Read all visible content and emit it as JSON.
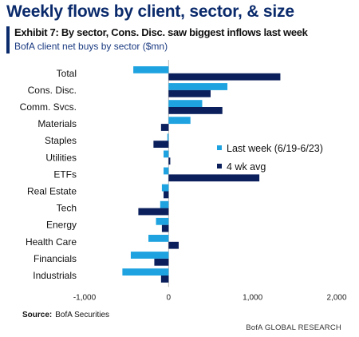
{
  "headline": "Weekly flows by client, sector, & size",
  "exhibit": {
    "title": "Exhibit 7: By sector, Cons. Disc. saw biggest inflows last week",
    "subtitle": "BofA client net buys by sector ($mn)"
  },
  "source": {
    "label": "Source:",
    "text": "BofA Securities"
  },
  "footer": "BofA GLOBAL RESEARCH",
  "colors": {
    "last_week": "#1fa3e0",
    "wk4_avg": "#0a1f5c",
    "zero_line": "#b9b9b9"
  },
  "chart_data": {
    "type": "bar",
    "orientation": "horizontal",
    "categories": [
      "Total",
      "Cons. Disc.",
      "Comm. Svcs.",
      "Materials",
      "Staples",
      "Utilities",
      "ETFs",
      "Real Estate",
      "Tech",
      "Energy",
      "Health Care",
      "Financials",
      "Industrials"
    ],
    "series": [
      {
        "name": "Last week (6/19-6/23)",
        "values": [
          -420,
          700,
          400,
          260,
          -15,
          -60,
          -60,
          -80,
          -100,
          -150,
          -240,
          -450,
          -550
        ]
      },
      {
        "name": "4 wk avg",
        "values": [
          1330,
          500,
          640,
          -90,
          -180,
          20,
          1080,
          -60,
          -360,
          -80,
          120,
          -170,
          -90
        ]
      }
    ],
    "xlim": [
      -1000,
      2000
    ],
    "xticks": [
      -1000,
      0,
      1000,
      2000
    ],
    "xtick_labels": [
      "-1,000",
      "0",
      "1,000",
      "2,000"
    ],
    "title": "",
    "xlabel": "",
    "ylabel": "",
    "legend_position": "right"
  }
}
